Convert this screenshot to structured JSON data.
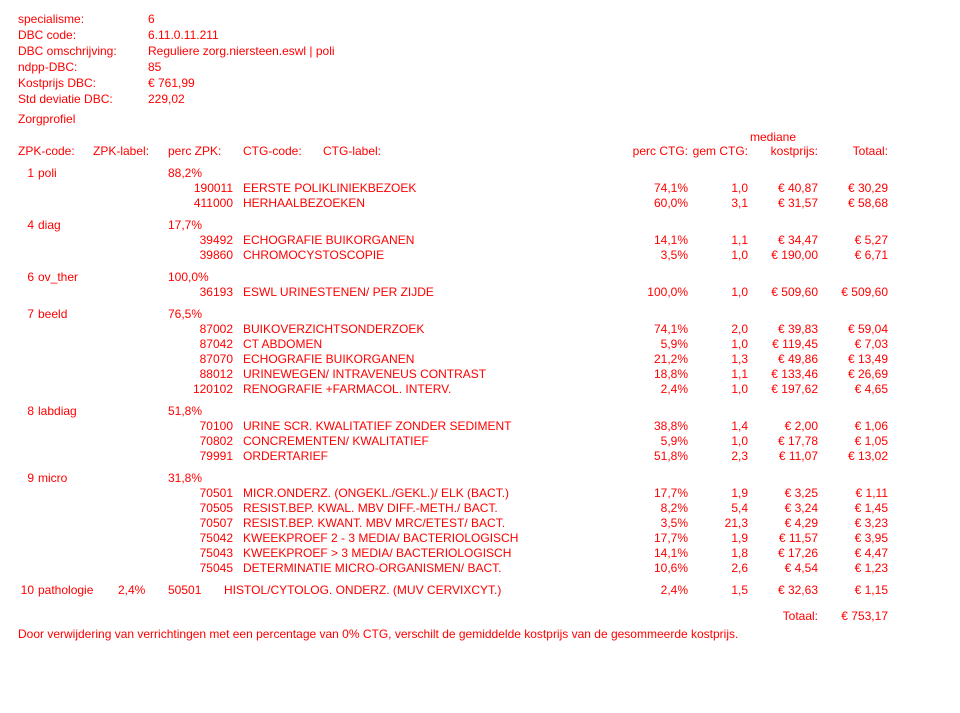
{
  "header": {
    "labels": {
      "specialisme": "specialisme:",
      "dbc_code": "DBC code:",
      "dbc_omschrijving": "DBC omschrijving:",
      "ndpp_dbc": "ndpp-DBC:",
      "kostprijs_dbc": "Kostprijs DBC:",
      "std_deviatie_dbc": "Std deviatie DBC:",
      "zorgprofiel": "Zorgprofiel"
    },
    "values": {
      "specialisme": "6",
      "dbc_code": "6.11.0.11.211",
      "dbc_omschrijving": "Reguliere zorg.niersteen.eswl | poli",
      "ndpp_dbc": "85",
      "kostprijs_dbc": "€ 761,99",
      "std_deviatie_dbc": "229,02"
    }
  },
  "columns": {
    "zpk_code": "ZPK-code:",
    "zpk_label": "ZPK-label:",
    "perc_zpk": "perc ZPK:",
    "ctg_code": "CTG-code:",
    "ctg_label": "CTG-label:",
    "perc_ctg": "perc CTG:",
    "gem_ctg": "gem CTG:",
    "mediane": "mediane",
    "kostprijs": "kostprijs:",
    "totaal": "Totaal:"
  },
  "groups": [
    {
      "num": "1",
      "label": "poli",
      "perc": "88,2%",
      "lines": [
        {
          "code": "190011",
          "label": "EERSTE POLIKLINIEKBEZOEK",
          "perc": "74,1%",
          "gem": "1,0",
          "kost": "€ 40,87",
          "tot": "€ 30,29"
        },
        {
          "code": "411000",
          "label": "HERHAALBEZOEKEN",
          "perc": "60,0%",
          "gem": "3,1",
          "kost": "€ 31,57",
          "tot": "€ 58,68"
        }
      ]
    },
    {
      "num": "4",
      "label": "diag",
      "perc": "17,7%",
      "lines": [
        {
          "code": "39492",
          "label": "ECHOGRAFIE BUIKORGANEN",
          "perc": "14,1%",
          "gem": "1,1",
          "kost": "€ 34,47",
          "tot": "€ 5,27"
        },
        {
          "code": "39860",
          "label": "CHROMOCYSTOSCOPIE",
          "perc": "3,5%",
          "gem": "1,0",
          "kost": "€ 190,00",
          "tot": "€ 6,71"
        }
      ]
    },
    {
      "num": "6",
      "label": "ov_ther",
      "perc": "100,0%",
      "lines": [
        {
          "code": "36193",
          "label": "ESWL URINESTENEN/ PER ZIJDE",
          "perc": "100,0%",
          "gem": "1,0",
          "kost": "€ 509,60",
          "tot": "€ 509,60"
        }
      ]
    },
    {
      "num": "7",
      "label": "beeld",
      "perc": "76,5%",
      "lines": [
        {
          "code": "87002",
          "label": "BUIKOVERZICHTSONDERZOEK",
          "perc": "74,1%",
          "gem": "2,0",
          "kost": "€ 39,83",
          "tot": "€ 59,04"
        },
        {
          "code": "87042",
          "label": "CT ABDOMEN",
          "perc": "5,9%",
          "gem": "1,0",
          "kost": "€ 119,45",
          "tot": "€ 7,03"
        },
        {
          "code": "87070",
          "label": "ECHOGRAFIE BUIKORGANEN",
          "perc": "21,2%",
          "gem": "1,3",
          "kost": "€ 49,86",
          "tot": "€ 13,49"
        },
        {
          "code": "88012",
          "label": "URINEWEGEN/ INTRAVENEUS CONTRAST",
          "perc": "18,8%",
          "gem": "1,1",
          "kost": "€ 133,46",
          "tot": "€ 26,69"
        },
        {
          "code": "120102",
          "label": "RENOGRAFIE +FARMACOL. INTERV.",
          "perc": "2,4%",
          "gem": "1,0",
          "kost": "€ 197,62",
          "tot": "€ 4,65"
        }
      ]
    },
    {
      "num": "8",
      "label": "labdiag",
      "perc": "51,8%",
      "lines": [
        {
          "code": "70100",
          "label": "URINE SCR. KWALITATIEF ZONDER SEDIMENT",
          "perc": "38,8%",
          "gem": "1,4",
          "kost": "€ 2,00",
          "tot": "€ 1,06"
        },
        {
          "code": "70802",
          "label": "CONCREMENTEN/ KWALITATIEF",
          "perc": "5,9%",
          "gem": "1,0",
          "kost": "€ 17,78",
          "tot": "€ 1,05"
        },
        {
          "code": "79991",
          "label": "ORDERTARIEF",
          "perc": "51,8%",
          "gem": "2,3",
          "kost": "€ 11,07",
          "tot": "€ 13,02"
        }
      ]
    },
    {
      "num": "9",
      "label": "micro",
      "perc": "31,8%",
      "lines": [
        {
          "code": "70501",
          "label": "MICR.ONDERZ. (ONGEKL./GEKL.)/ ELK (BACT.)",
          "perc": "17,7%",
          "gem": "1,9",
          "kost": "€ 3,25",
          "tot": "€ 1,11"
        },
        {
          "code": "70505",
          "label": "RESIST.BEP. KWAL. MBV DIFF.-METH./ BACT.",
          "perc": "8,2%",
          "gem": "5,4",
          "kost": "€ 3,24",
          "tot": "€ 1,45"
        },
        {
          "code": "70507",
          "label": "RESIST.BEP. KWANT. MBV MRC/ETEST/ BACT.",
          "perc": "3,5%",
          "gem": "21,3",
          "kost": "€ 4,29",
          "tot": "€ 3,23"
        },
        {
          "code": "75042",
          "label": "KWEEKPROEF 2 - 3 MEDIA/ BACTERIOLOGISCH",
          "perc": "17,7%",
          "gem": "1,9",
          "kost": "€ 11,57",
          "tot": "€ 3,95"
        },
        {
          "code": "75043",
          "label": "KWEEKPROEF > 3 MEDIA/ BACTERIOLOGISCH",
          "perc": "14,1%",
          "gem": "1,8",
          "kost": "€ 17,26",
          "tot": "€ 4,47"
        },
        {
          "code": "75045",
          "label": "DETERMINATIE MICRO-ORGANISMEN/ BACT.",
          "perc": "10,6%",
          "gem": "2,6",
          "kost": "€ 4,54",
          "tot": "€ 1,23"
        }
      ]
    },
    {
      "num": "10",
      "label": "pathologie",
      "perc": "2,4%",
      "inline": true,
      "lines": [
        {
          "code": "50501",
          "label": "HISTOL/CYTOLOG. ONDERZ. (MUV CERVIXCYT.)",
          "perc": "2,4%",
          "gem": "1,5",
          "kost": "€ 32,63",
          "tot": "€ 1,15"
        }
      ]
    }
  ],
  "grand_total": {
    "label": "Totaal:",
    "value": "€ 753,17"
  },
  "footnote": "Door verwijdering van verrichtingen met een percentage van 0% CTG, verschilt de gemiddelde kostprijs van de gesommeerde kostprijs."
}
